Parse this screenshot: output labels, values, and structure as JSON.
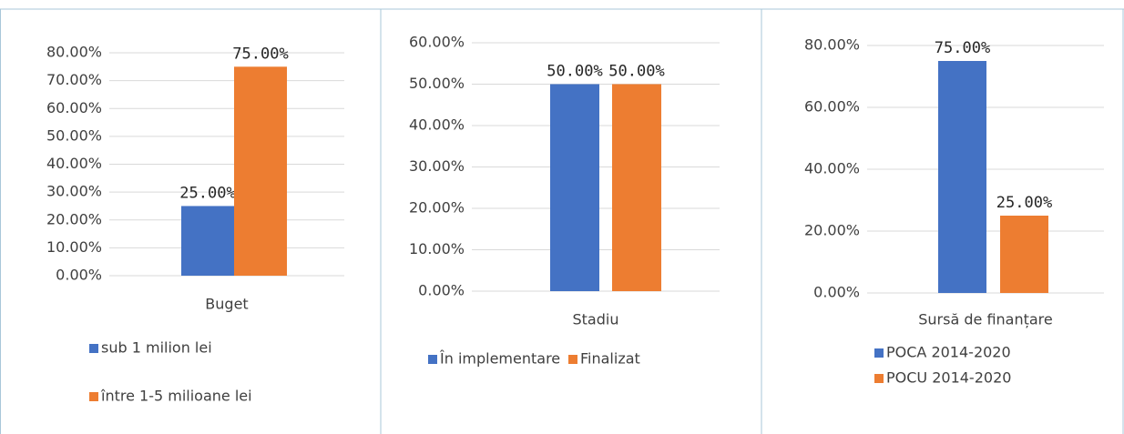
{
  "chart_data": [
    {
      "type": "bar",
      "categories": [
        "Buget"
      ],
      "series": [
        {
          "name": "sub 1 milion lei",
          "color": "#4472c4",
          "values": [
            25
          ],
          "value_labels": [
            "25.00%"
          ]
        },
        {
          "name": "între 1-5 milioane lei",
          "color": "#ed7d31",
          "values": [
            75
          ],
          "value_labels": [
            "75.00%"
          ]
        }
      ],
      "ylim": [
        0,
        80
      ],
      "yticks": [
        {
          "value": 0,
          "label": "0.00%"
        },
        {
          "value": 10,
          "label": "10.00%"
        },
        {
          "value": 20,
          "label": "20.00%"
        },
        {
          "value": 30,
          "label": "30.00%"
        },
        {
          "value": 40,
          "label": "40.00%"
        },
        {
          "value": 50,
          "label": "50.00%"
        },
        {
          "value": 60,
          "label": "60.00%"
        },
        {
          "value": 70,
          "label": "70.00%"
        },
        {
          "value": 80,
          "label": "80.00%"
        }
      ],
      "grid": true,
      "legend": "bottom"
    },
    {
      "type": "bar",
      "categories": [
        "Stadiu"
      ],
      "series": [
        {
          "name": "În implementare",
          "color": "#4472c4",
          "values": [
            50
          ],
          "value_labels": [
            "50.00%"
          ]
        },
        {
          "name": "Finalizat",
          "color": "#ed7d31",
          "values": [
            50
          ],
          "value_labels": [
            "50.00%"
          ]
        }
      ],
      "ylim": [
        0,
        60
      ],
      "yticks": [
        {
          "value": 0,
          "label": "0.00%"
        },
        {
          "value": 10,
          "label": "10.00%"
        },
        {
          "value": 20,
          "label": "20.00%"
        },
        {
          "value": 30,
          "label": "30.00%"
        },
        {
          "value": 40,
          "label": "40.00%"
        },
        {
          "value": 50,
          "label": "50.00%"
        },
        {
          "value": 60,
          "label": "60.00%"
        }
      ],
      "grid": true,
      "legend": "bottom"
    },
    {
      "type": "bar",
      "categories": [
        "Sursă de finanțare"
      ],
      "series": [
        {
          "name": "POCA 2014-2020",
          "color": "#4472c4",
          "values": [
            75
          ],
          "value_labels": [
            "75.00%"
          ]
        },
        {
          "name": "POCU 2014-2020",
          "color": "#ed7d31",
          "values": [
            25
          ],
          "value_labels": [
            "25.00%"
          ]
        }
      ],
      "ylim": [
        0,
        80
      ],
      "yticks": [
        {
          "value": 0,
          "label": "0.00%"
        },
        {
          "value": 20,
          "label": "20.00%"
        },
        {
          "value": 40,
          "label": "40.00%"
        },
        {
          "value": 60,
          "label": "60.00%"
        },
        {
          "value": 80,
          "label": "80.00%"
        }
      ],
      "grid": true,
      "legend": "bottom"
    }
  ]
}
